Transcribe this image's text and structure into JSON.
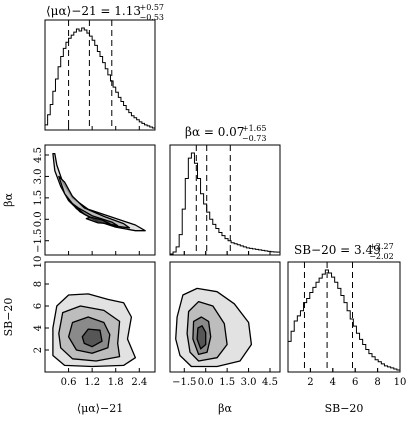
{
  "chart_data": {
    "type": "corner",
    "parameters": [
      {
        "key": "mu",
        "label": "⟨μα⟩−21",
        "range": [
          0.0,
          2.8
        ],
        "ticks": [
          0.6,
          1.2,
          1.8,
          2.4
        ],
        "tick_labels": [
          "0.6",
          "1.2",
          "1.8",
          "2.4"
        ],
        "title": {
          "prefix": "⟨μα⟩−21  = 1.13",
          "plus": "+0.57",
          "minus": "−0.53"
        },
        "quantiles": [
          0.6,
          1.13,
          1.7
        ],
        "histogram": [
          0.05,
          0.15,
          0.25,
          0.38,
          0.5,
          0.62,
          0.72,
          0.8,
          0.86,
          0.9,
          0.93,
          0.96,
          0.99,
          0.97,
          1.0,
          0.98,
          0.95,
          0.92,
          0.88,
          0.83,
          0.77,
          0.72,
          0.66,
          0.6,
          0.54,
          0.48,
          0.42,
          0.37,
          0.32,
          0.28,
          0.24,
          0.2,
          0.17,
          0.14,
          0.12,
          0.1,
          0.08,
          0.065,
          0.05,
          0.04,
          0.03,
          0.02
        ]
      },
      {
        "key": "beta",
        "label": "βα",
        "range": [
          -2.5,
          5.2
        ],
        "ticks": [
          -1.5,
          0.0,
          1.5,
          3.0,
          4.5
        ],
        "tick_labels": [
          "−1.5",
          "0.0",
          "1.5",
          "3.0",
          "4.5"
        ],
        "title": {
          "prefix": "βα = 0.07",
          "plus": "+1.65",
          "minus": "−0.73"
        },
        "quantiles": [
          -0.66,
          0.07,
          1.72
        ],
        "histogram": [
          0.01,
          0.03,
          0.08,
          0.2,
          0.45,
          0.75,
          0.95,
          1.0,
          0.9,
          0.75,
          0.6,
          0.5,
          0.42,
          0.35,
          0.3,
          0.26,
          0.22,
          0.19,
          0.16,
          0.14,
          0.12,
          0.11,
          0.1,
          0.09,
          0.08,
          0.07,
          0.065,
          0.06,
          0.055,
          0.05,
          0.045,
          0.04,
          0.035,
          0.032,
          0.03,
          0.028
        ]
      },
      {
        "key": "sb",
        "label": "SB−20",
        "range": [
          0,
          10
        ],
        "ticks": [
          2,
          4,
          6,
          8,
          10
        ],
        "tick_labels": [
          "2",
          "4",
          "6",
          "8",
          "10"
        ],
        "title": {
          "prefix": "SB−20 = 3.49",
          "plus": "+2.27",
          "minus": "−2.02"
        },
        "quantiles": [
          1.47,
          3.49,
          5.76
        ],
        "histogram": [
          0.3,
          0.4,
          0.5,
          0.55,
          0.6,
          0.68,
          0.72,
          0.78,
          0.83,
          0.88,
          0.92,
          0.96,
          1.0,
          0.97,
          0.93,
          0.88,
          0.82,
          0.75,
          0.68,
          0.6,
          0.52,
          0.45,
          0.38,
          0.32,
          0.27,
          0.22,
          0.18,
          0.15,
          0.12,
          0.1,
          0.08,
          0.06,
          0.05,
          0.04,
          0.03,
          0.02
        ]
      }
    ],
    "pairs": [
      {
        "x": "mu",
        "y": "beta",
        "center": [
          1.2,
          -0.05
        ],
        "levels": [
          [
            [
              0.2,
              4.6
            ],
            [
              0.25,
              3.4
            ],
            [
              0.4,
              2.3
            ],
            [
              0.6,
              1.3
            ],
            [
              0.9,
              0.5
            ],
            [
              1.3,
              -0.1
            ],
            [
              1.8,
              -0.55
            ],
            [
              2.3,
              -0.8
            ],
            [
              2.55,
              -0.8
            ],
            [
              2.3,
              -0.4
            ],
            [
              1.7,
              0.15
            ],
            [
              1.1,
              0.7
            ],
            [
              0.7,
              1.5
            ],
            [
              0.45,
              2.6
            ],
            [
              0.3,
              3.8
            ],
            [
              0.25,
              4.6
            ]
          ],
          [
            [
              0.35,
              3.0
            ],
            [
              0.5,
              1.8
            ],
            [
              0.8,
              0.75
            ],
            [
              1.2,
              0.05
            ],
            [
              1.7,
              -0.45
            ],
            [
              2.15,
              -0.6
            ],
            [
              2.0,
              -0.3
            ],
            [
              1.5,
              0.2
            ],
            [
              1.0,
              0.8
            ],
            [
              0.7,
              1.6
            ],
            [
              0.5,
              2.6
            ]
          ],
          [
            [
              0.7,
              1.1
            ],
            [
              1.0,
              0.35
            ],
            [
              1.4,
              -0.2
            ],
            [
              1.85,
              -0.45
            ],
            [
              1.7,
              -0.2
            ],
            [
              1.2,
              0.25
            ],
            [
              0.85,
              0.8
            ]
          ],
          [
            [
              1.05,
              0.05
            ],
            [
              1.35,
              -0.25
            ],
            [
              1.65,
              -0.3
            ],
            [
              1.45,
              -0.05
            ],
            [
              1.15,
              0.15
            ]
          ]
        ]
      },
      {
        "x": "mu",
        "y": "sb",
        "center": [
          1.2,
          3.2
        ],
        "levels": [
          [
            [
              0.2,
              4.0
            ],
            [
              0.3,
              6.0
            ],
            [
              0.6,
              7.0
            ],
            [
              1.1,
              7.1
            ],
            [
              1.6,
              6.6
            ],
            [
              2.0,
              6.3
            ],
            [
              2.2,
              5.0
            ],
            [
              2.1,
              3.0
            ],
            [
              2.3,
              1.3
            ],
            [
              2.0,
              0.6
            ],
            [
              1.2,
              0.5
            ],
            [
              0.5,
              0.6
            ],
            [
              0.2,
              1.5
            ]
          ],
          [
            [
              0.35,
              3.5
            ],
            [
              0.45,
              5.4
            ],
            [
              0.9,
              6.0
            ],
            [
              1.5,
              5.6
            ],
            [
              1.9,
              4.6
            ],
            [
              1.85,
              2.6
            ],
            [
              1.9,
              1.4
            ],
            [
              1.3,
              1.0
            ],
            [
              0.7,
              1.2
            ],
            [
              0.4,
              2.2
            ]
          ],
          [
            [
              0.6,
              3.2
            ],
            [
              0.7,
              4.5
            ],
            [
              1.1,
              5.0
            ],
            [
              1.5,
              4.5
            ],
            [
              1.65,
              3.4
            ],
            [
              1.6,
              2.2
            ],
            [
              1.2,
              1.7
            ],
            [
              0.8,
              2.0
            ]
          ],
          [
            [
              0.95,
              3.2
            ],
            [
              1.1,
              3.9
            ],
            [
              1.4,
              3.8
            ],
            [
              1.45,
              2.8
            ],
            [
              1.2,
              2.3
            ],
            [
              1.0,
              2.6
            ]
          ]
        ]
      },
      {
        "x": "beta",
        "y": "sb",
        "center": [
          -0.3,
          3.1
        ],
        "levels": [
          [
            [
              -2.0,
              5.0
            ],
            [
              -1.6,
              7.0
            ],
            [
              -0.6,
              7.6
            ],
            [
              0.8,
              7.3
            ],
            [
              2.0,
              6.2
            ],
            [
              3.0,
              4.5
            ],
            [
              3.2,
              2.5
            ],
            [
              2.4,
              1.0
            ],
            [
              0.8,
              0.5
            ],
            [
              -1.0,
              0.5
            ],
            [
              -1.8,
              1.5
            ],
            [
              -2.1,
              3.0
            ]
          ],
          [
            [
              -1.3,
              3.5
            ],
            [
              -1.2,
              5.5
            ],
            [
              -0.5,
              6.4
            ],
            [
              0.5,
              6.0
            ],
            [
              1.3,
              4.4
            ],
            [
              1.5,
              2.5
            ],
            [
              0.8,
              1.3
            ],
            [
              -0.5,
              1.0
            ],
            [
              -1.1,
              1.8
            ]
          ],
          [
            [
              -0.9,
              3.0
            ],
            [
              -0.85,
              4.6
            ],
            [
              -0.3,
              5.0
            ],
            [
              0.2,
              4.6
            ],
            [
              0.35,
              3.2
            ],
            [
              0.1,
              1.8
            ],
            [
              -0.5,
              1.6
            ]
          ],
          [
            [
              -0.6,
              3.0
            ],
            [
              -0.55,
              4.0
            ],
            [
              -0.25,
              4.2
            ],
            [
              0.0,
              3.6
            ],
            [
              0.0,
              2.5
            ],
            [
              -0.35,
              2.1
            ]
          ]
        ]
      }
    ]
  }
}
